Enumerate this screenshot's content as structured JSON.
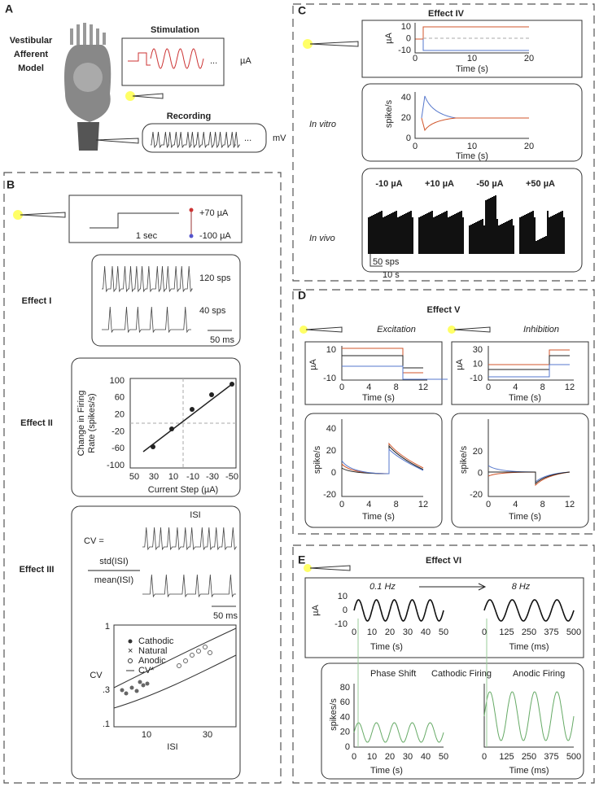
{
  "panels": {
    "A": {
      "label": "A",
      "model": [
        "Vestibular",
        "Afferent",
        "Model"
      ],
      "stimulation": "Stimulation",
      "stim_unit": "µA",
      "recording": "Recording",
      "rec_unit": "mV",
      "ellipsis": "..."
    },
    "B": {
      "label": "B",
      "step": {
        "scale": "1 sec",
        "high": "+70 µA",
        "low": "-100 µA"
      },
      "effect1": {
        "title": "Effect I",
        "rate_high": "120 sps",
        "rate_low": "40 sps",
        "scale": "50 ms"
      },
      "effect2": {
        "title": "Effect II",
        "ylabel_1": "Change in Firing",
        "ylabel_2": "Rate (spikes/s)",
        "xlabel": "Current Step (µA)",
        "yticks": [
          "100",
          "60",
          "20",
          "-20",
          "-60",
          "-100"
        ],
        "xticks": [
          "50",
          "30",
          "10",
          "-10",
          "-30",
          "-50"
        ]
      },
      "effect3": {
        "title": "Effect III",
        "cv": "CV =",
        "numerator": "std(ISI)",
        "denominator": "mean(ISI)",
        "isi": "ISI",
        "scale": "50 ms",
        "legend": [
          "Cathodic",
          "Natural",
          "Anodic",
          "CV*"
        ],
        "ylabel": "CV",
        "yticks": [
          "1",
          ".3",
          ".1"
        ],
        "xlabel": "ISI",
        "xticks": [
          "10",
          "30"
        ]
      }
    },
    "C": {
      "label": "C",
      "title": "Effect IV",
      "stim": {
        "ylabel": "µA",
        "yticks": [
          "10",
          "0",
          "-10"
        ],
        "xticks": [
          "0",
          "10",
          "20"
        ],
        "xlabel": "Time (s)"
      },
      "invitro": {
        "label": "In vitro",
        "ylabel": "spike/s",
        "yticks": [
          "40",
          "20",
          "0"
        ],
        "xticks": [
          "0",
          "10",
          "20"
        ],
        "xlabel": "Time (s)"
      },
      "invivo": {
        "label": "In vivo",
        "conditions": [
          "-10 µA",
          "+10 µA",
          "-50 µA",
          "+50 µA"
        ],
        "scale_y": "50 sps",
        "scale_x": "10 s"
      }
    },
    "D": {
      "label": "D",
      "title": "Effect V",
      "excitation": "Excitation",
      "inhibition": "Inhibition",
      "exc_stim": {
        "ylabel": "µA",
        "yticks": [
          "10",
          "-10"
        ],
        "xticks": [
          "0",
          "4",
          "8",
          "12"
        ],
        "xlabel": "Time (s)"
      },
      "inh_stim": {
        "ylabel": "µA",
        "yticks": [
          "30",
          "10",
          "-10"
        ],
        "xticks": [
          "0",
          "4",
          "8",
          "12"
        ],
        "xlabel": "Time (s)"
      },
      "exc_resp": {
        "ylabel": "spike/s",
        "yticks": [
          "40",
          "20",
          "0",
          "-20"
        ],
        "xticks": [
          "0",
          "4",
          "8",
          "12"
        ],
        "xlabel": "Time (s)"
      },
      "inh_resp": {
        "ylabel": "spike/s",
        "yticks": [
          "20",
          "0",
          "-20"
        ],
        "xticks": [
          "0",
          "4",
          "8",
          "12"
        ],
        "xlabel": "Time (s)"
      }
    },
    "E": {
      "label": "E",
      "title": "Effect VI",
      "low_freq": "0.1 Hz",
      "high_freq": "8 Hz",
      "stim": {
        "ylabel": "µA",
        "yticks": [
          "10",
          "0",
          "-10"
        ],
        "xticks_s": [
          "0",
          "10",
          "20",
          "30",
          "40",
          "50"
        ],
        "xlabel_s": "Time (s)",
        "xticks_ms": [
          "0",
          "125",
          "250",
          "375",
          "500"
        ],
        "xlabel_ms": "Time (ms)"
      },
      "resp": {
        "phase_shift": "Phase Shift",
        "cathodic": "Cathodic Firing",
        "anodic": "Anodic Firing",
        "ylabel": "spikes/s",
        "yticks": [
          "80",
          "60",
          "40",
          "20",
          "0"
        ],
        "xticks_s": [
          "0",
          "10",
          "20",
          "30",
          "40",
          "50"
        ],
        "xlabel_s": "Time (s)",
        "xticks_ms": [
          "0",
          "125",
          "250",
          "375",
          "500"
        ],
        "xlabel_ms": "Time (ms)"
      }
    }
  }
}
